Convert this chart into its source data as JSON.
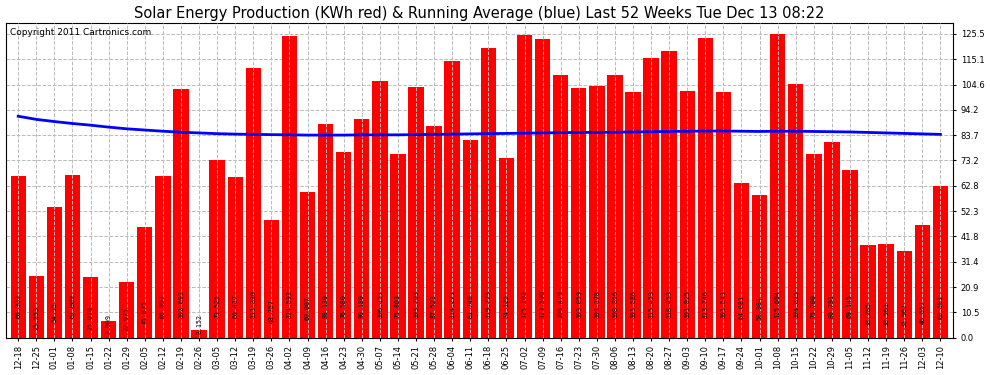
{
  "title": "Solar Energy Production (KWh red) & Running Average (blue) Last 52 Weeks Tue Dec 13 08:22",
  "copyright": "Copyright 2011 Cartronics.com",
  "bar_color": "#ff0000",
  "avg_line_color": "#0000ff",
  "background_color": "#ffffff",
  "plot_bg_color": "#ffffff",
  "grid_color": "#bbbbbb",
  "ylabel_right_values": [
    0.0,
    10.5,
    20.9,
    31.4,
    41.8,
    52.3,
    62.8,
    73.2,
    83.7,
    94.2,
    104.6,
    115.1,
    125.5
  ],
  "ylim": [
    0,
    130
  ],
  "categories": [
    "12-18",
    "12-25",
    "01-01",
    "01-08",
    "01-15",
    "01-22",
    "01-29",
    "02-05",
    "02-12",
    "02-19",
    "02-26",
    "03-05",
    "03-12",
    "03-19",
    "03-26",
    "04-02",
    "04-09",
    "04-16",
    "04-23",
    "04-30",
    "05-07",
    "05-14",
    "05-21",
    "05-28",
    "06-04",
    "06-11",
    "06-18",
    "06-25",
    "07-02",
    "07-09",
    "07-16",
    "07-23",
    "07-30",
    "08-06",
    "08-13",
    "08-20",
    "08-27",
    "09-03",
    "09-10",
    "09-17",
    "09-24",
    "10-01",
    "10-08",
    "10-15",
    "10-22",
    "10-29",
    "11-05",
    "11-12",
    "11-19",
    "11-26",
    "12-03",
    "12-10"
  ],
  "values": [
    66.933,
    25.553,
    54.15,
    67.009,
    25.078,
    7.009,
    22.975,
    45.875,
    66.897,
    102.692,
    3.152,
    73.525,
    66.417,
    111.33,
    48.757,
    124.592,
    60.007,
    88.13,
    76.58,
    90.18,
    106.151,
    75.803,
    103.703,
    87.523,
    114.271,
    81.748,
    119.723,
    74.125,
    125.102,
    123.59,
    108.479,
    103.059,
    104.178,
    108.356,
    101.586,
    115.453,
    118.453,
    101.925,
    123.746,
    101.541,
    64.081,
    58.984,
    125.694,
    104.815,
    75.7,
    80.791,
    69.145,
    38.285,
    38.561,
    35.967,
    46.557,
    62.581
  ],
  "value_labels": [
    "66.933",
    "25.553",
    "54.15",
    "67.009",
    "25.078",
    "7.009",
    "22.975",
    "45.875",
    "66.897",
    "102.692",
    "3.152",
    "73.525",
    "66.417",
    "111.330",
    "48.757",
    "124.592",
    "60.007",
    "88.130",
    "76.580",
    "90.180",
    "106.151",
    "75.803",
    "103.703",
    "87.523",
    "114.271",
    "81.748",
    "119.723",
    "74.125",
    "125.102",
    "123.590",
    "108.479",
    "103.059",
    "104.178",
    "108.356",
    "101.586",
    "115.453",
    "118.453",
    "101.925",
    "123.746",
    "101.541",
    "64.081",
    "58.984",
    "125.694",
    "104.815",
    "75.700",
    "80.791",
    "69.145",
    "38.285",
    "38.561",
    "35.967",
    "46.557",
    "62.581"
  ],
  "running_avg": [
    91.5,
    90.2,
    89.3,
    88.5,
    87.8,
    87.0,
    86.3,
    85.8,
    85.3,
    84.9,
    84.6,
    84.3,
    84.1,
    84.0,
    83.9,
    83.8,
    83.7,
    83.7,
    83.7,
    83.8,
    83.8,
    83.8,
    83.9,
    84.0,
    84.1,
    84.2,
    84.3,
    84.4,
    84.5,
    84.6,
    84.7,
    84.8,
    84.8,
    84.9,
    85.0,
    85.1,
    85.2,
    85.3,
    85.4,
    85.4,
    85.3,
    85.2,
    85.3,
    85.3,
    85.2,
    85.1,
    85.0,
    84.8,
    84.6,
    84.4,
    84.2,
    84.0
  ],
  "title_fontsize": 10.5,
  "tick_fontsize": 6.0,
  "label_fontsize": 4.8,
  "copyright_fontsize": 6.5
}
